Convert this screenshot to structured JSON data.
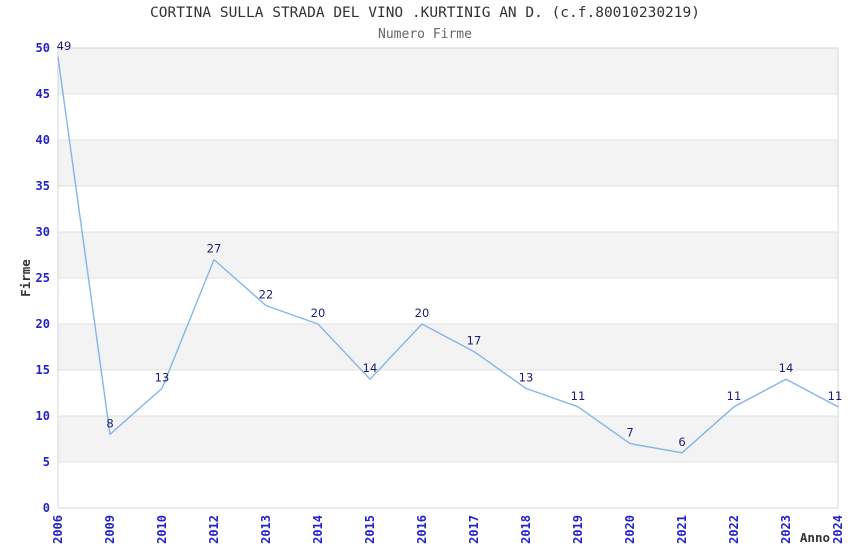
{
  "header": {
    "title": "CORTINA SULLA STRADA DEL VINO .KURTINIG AN D. (c.f.80010230219)",
    "subtitle": "Numero Firme"
  },
  "chart_data": {
    "type": "line",
    "title": "CORTINA SULLA STRADA DEL VINO .KURTINIG AN D. (c.f.80010230219)",
    "subtitle": "Numero Firme",
    "xlabel": "Anno",
    "ylabel": "Firme",
    "categories": [
      "2006",
      "2009",
      "2010",
      "2012",
      "2013",
      "2014",
      "2015",
      "2016",
      "2017",
      "2018",
      "2019",
      "2020",
      "2021",
      "2022",
      "2023",
      "2024"
    ],
    "values": [
      49,
      8,
      13,
      27,
      22,
      20,
      14,
      20,
      17,
      13,
      11,
      7,
      6,
      11,
      14,
      11
    ],
    "ylim": [
      0,
      50
    ],
    "ytick_step": 5,
    "yticks": [
      0,
      5,
      10,
      15,
      20,
      25,
      30,
      35,
      40,
      45,
      50
    ],
    "grid": "horizontal-alternating-bands",
    "legend_position": "none",
    "x_tick_rotation": -90,
    "data_labels_shown": true,
    "colors": {
      "line": "#85b5e8",
      "data_label": "#1c1c75",
      "tick_label": "#2222cc",
      "band_fill": "#f3f3f3",
      "gridline": "#e2e2e2",
      "plot_border": "#d4d4d4",
      "title": "#333333",
      "subtitle": "#666666",
      "axis_label": "#333333",
      "background": "#ffffff"
    }
  }
}
